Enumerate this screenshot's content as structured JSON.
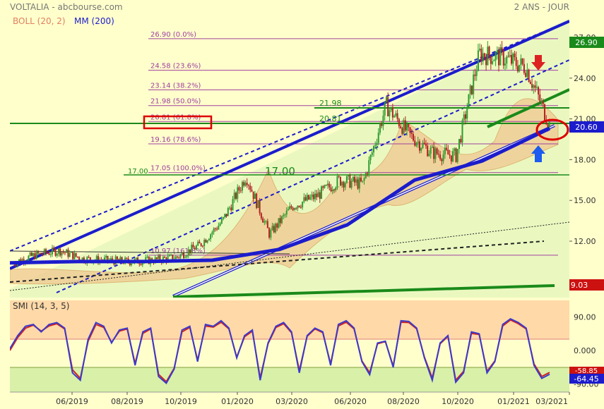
{
  "header": {
    "title": "VOLTALIA - abcbourse.com",
    "period": "2 ANS - JOUR",
    "legend_boll": "BOLL (20, 2)",
    "legend_mm": "MM (200)"
  },
  "colors": {
    "background": "#ffffcc",
    "price_panel_bg": "#eaf8c0",
    "candle_up": "#2e9b2e",
    "candle_down": "#b22222",
    "bollinger_fill": "#f0c890",
    "bollinger_edge": "#d9a25a",
    "channel": "#1c1ccc",
    "support_green": "#1a8a1a",
    "fib_line": "#a040a0",
    "fib_text": "#a040a0",
    "smi_line": "#3a3acc",
    "smi_signal": "#cc2222",
    "smi_top_bg": "#ffd9a8",
    "smi_bottom_bg": "#d8f0a8"
  },
  "price_axis": {
    "ticks": [
      "27.00",
      "24.00",
      "21.00",
      "18.00",
      "15.00",
      "12.00"
    ],
    "last_price": "20.60",
    "high_badge": "26.90",
    "low_badge": "9.03"
  },
  "fib_levels": [
    {
      "label": "26.90 (0.0%)",
      "value": 26.9
    },
    {
      "label": "24.58 (23.6%)",
      "value": 24.58
    },
    {
      "label": "23.14 (38.2%)",
      "value": 23.14
    },
    {
      "label": "21.98 (50.0%)",
      "value": 21.98
    },
    {
      "label": "20.81 (61.8%)",
      "value": 20.81
    },
    {
      "label": "19.16 (78.6%)",
      "value": 19.16
    },
    {
      "label": "17.05 (100.0%)",
      "value": 17.05
    },
    {
      "label": "10.97 (161.8%)",
      "value": 10.97
    }
  ],
  "annotations": {
    "left_17": "17.00",
    "mid_17": "17.00",
    "green_2198": "21.98",
    "green_2081": "20.81"
  },
  "smi": {
    "label": "SMI (14, 3, 5)",
    "ticks": [
      "90.00",
      "0.000",
      "-90.00"
    ],
    "last_value": "-64.45",
    "signal_value": "-58.85"
  },
  "x_axis": {
    "labels": [
      "06/2019",
      "08/2019",
      "10/2019",
      "01/2020",
      "03/2020",
      "06/2020",
      "08/2020",
      "10/2020",
      "01/2021",
      "03/2021"
    ]
  },
  "chart_data": [
    {
      "type": "line",
      "title": "VOLTALIA - abcbourse.com",
      "subtitle": "2 ANS - JOUR",
      "y_ticks": [
        27,
        24,
        21,
        18,
        15,
        12
      ],
      "ylim": [
        8.5,
        28.5
      ],
      "x_ticks": [
        "06/2019",
        "08/2019",
        "10/2019",
        "01/2020",
        "03/2020",
        "06/2020",
        "08/2020",
        "10/2020",
        "01/2021",
        "03/2021"
      ],
      "series": [
        {
          "name": "VOLTALIA",
          "x": [
            "03/2019",
            "05/2019",
            "06/2019",
            "07/2019",
            "08/2019",
            "09/2019",
            "10/2019",
            "11/2019",
            "12/2019",
            "01/2020",
            "02/2020",
            "03/2020",
            "04/2020",
            "05/2020",
            "06/2020",
            "07/2020",
            "08/2020",
            "09/2020",
            "10/2020",
            "11/2020",
            "12/2020",
            "01/2021",
            "02/2021",
            "03/2021"
          ],
          "y": [
            10.4,
            11.0,
            11.3,
            10.7,
            10.6,
            10.5,
            10.6,
            10.8,
            11.7,
            13.5,
            16.8,
            12.5,
            14.6,
            15.3,
            16.5,
            16.2,
            22.0,
            19.8,
            18.5,
            18.3,
            25.8,
            25.5,
            24.8,
            20.6
          ]
        },
        {
          "name": "MM (200)",
          "x": [
            "03/2019",
            "06/2019",
            "09/2019",
            "12/2019",
            "03/2020",
            "06/2020",
            "09/2020",
            "12/2020",
            "03/2021"
          ],
          "y": [
            10.4,
            10.5,
            10.5,
            10.6,
            11.4,
            13.2,
            16.5,
            17.9,
            20.3
          ]
        }
      ],
      "horizontal_levels": [
        26.9,
        24.58,
        23.14,
        21.98,
        20.81,
        19.16,
        17.05,
        10.97
      ],
      "legend": "top-left",
      "grid": false
    },
    {
      "type": "line",
      "title": "SMI (14, 3, 5)",
      "y_ticks": [
        90,
        0,
        -90
      ],
      "ylim": [
        -100,
        100
      ],
      "series": [
        {
          "name": "SMI",
          "y": [
            5,
            40,
            65,
            70,
            50,
            70,
            75,
            60,
            -60,
            -80,
            30,
            75,
            65,
            20,
            55,
            60,
            -40,
            50,
            60,
            -70,
            -88,
            -50,
            55,
            65,
            -30,
            70,
            65,
            80,
            60,
            -20,
            40,
            55,
            -80,
            20,
            65,
            75,
            50,
            -60,
            40,
            60,
            50,
            -40,
            70,
            80,
            60,
            -30,
            -65,
            20,
            25,
            -45,
            80,
            78,
            60,
            -20,
            -80,
            20,
            40,
            -85,
            -60,
            50,
            45,
            -60,
            -30,
            70,
            85,
            75,
            60,
            -40,
            -75,
            -64
          ]
        },
        {
          "name": "Signal",
          "y": [
            0,
            35,
            60,
            68,
            52,
            66,
            72,
            58,
            -52,
            -75,
            25,
            70,
            62,
            22,
            52,
            58,
            -35,
            46,
            58,
            -64,
            -84,
            -48,
            50,
            62,
            -26,
            66,
            63,
            76,
            58,
            -18,
            37,
            52,
            -74,
            18,
            62,
            72,
            48,
            -54,
            38,
            58,
            48,
            -36,
            66,
            76,
            58,
            -28,
            -60,
            18,
            24,
            -42,
            76,
            75,
            58,
            -18,
            -74,
            18,
            38,
            -80,
            -56,
            46,
            43,
            -56,
            -28,
            66,
            82,
            72,
            58,
            -36,
            -70,
            -59
          ]
        }
      ]
    }
  ]
}
